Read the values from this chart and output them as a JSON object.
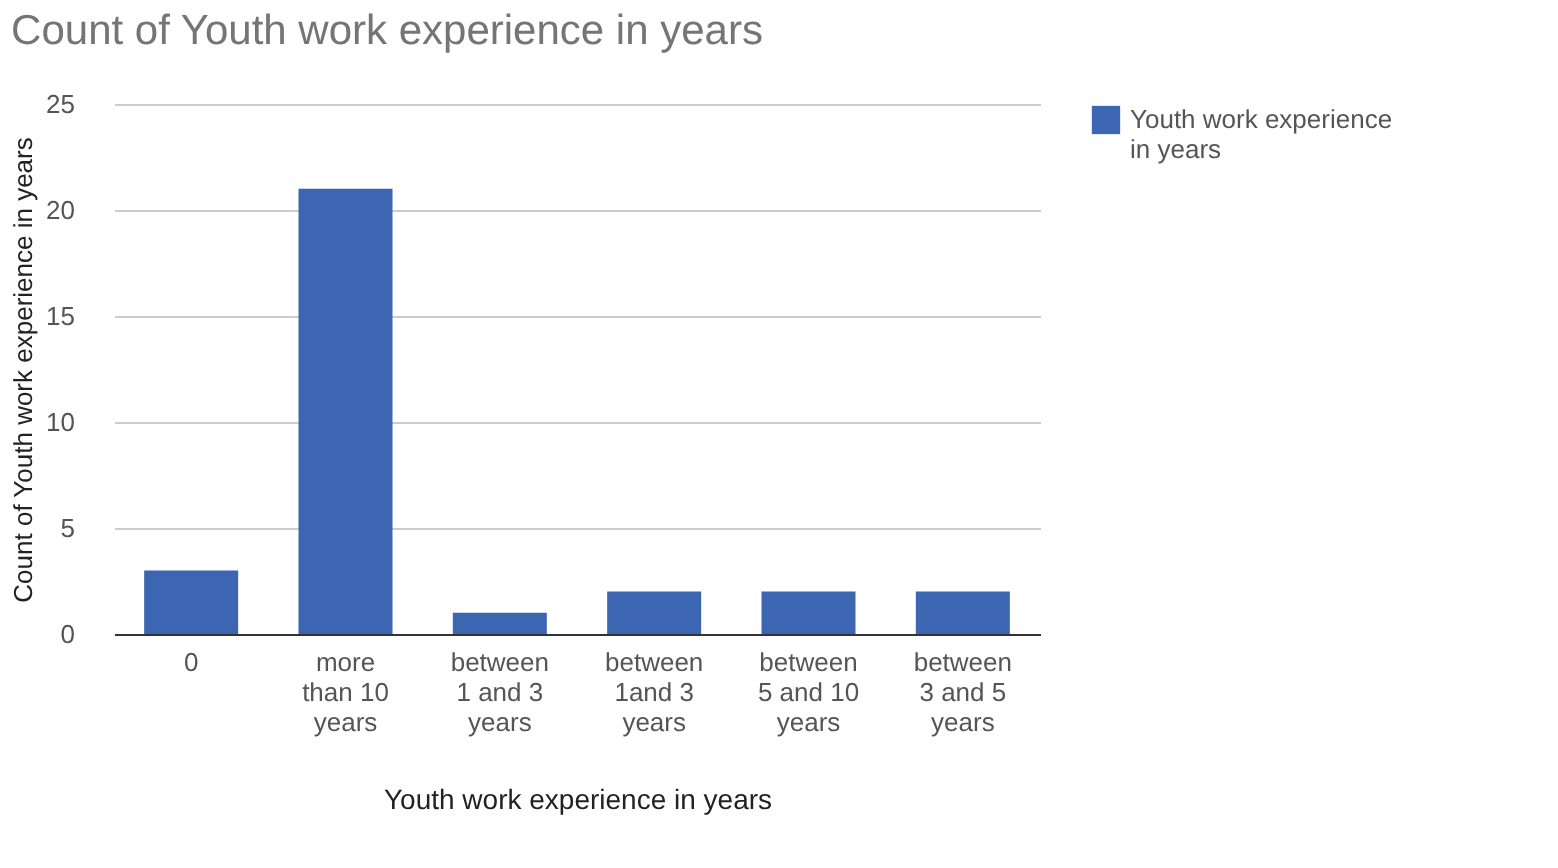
{
  "chart_data": {
    "type": "bar",
    "title": "Count of Youth work experience in years",
    "xlabel": "Youth work experience in years",
    "ylabel": "Count of Youth work experience in years",
    "categories": [
      "0",
      "more than 10 years",
      "between 1 and 3 years",
      "between 1and 3 years",
      "between 5 and 10 years",
      "between 3 and 5 years"
    ],
    "series": [
      {
        "name": "Youth work experience in years",
        "color": "#3c66b2",
        "values": [
          3,
          21,
          1,
          2,
          2,
          2
        ]
      }
    ],
    "ylim": [
      0,
      25
    ],
    "yticks": [
      0,
      5,
      10,
      15,
      20,
      25
    ],
    "grid": "y",
    "legend": "top right"
  }
}
